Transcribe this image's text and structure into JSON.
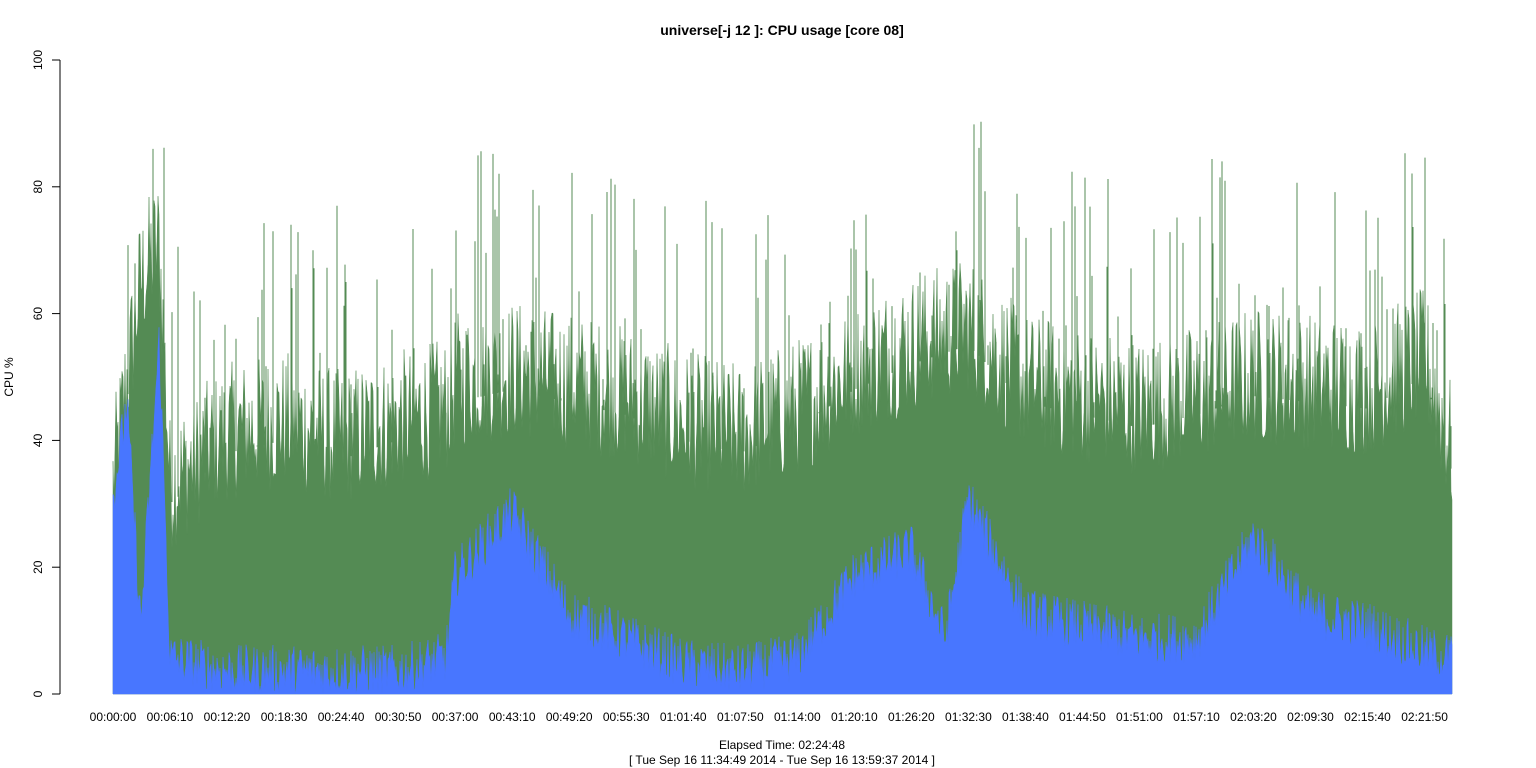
{
  "chart_data": {
    "type": "area",
    "title": "universe[-j 12  ]: CPU usage [core 08]",
    "xlabel": "Elapsed Time: 02:24:48",
    "xlabel_sub": "[ Tue Sep 16 11:34:49 2014 - Tue Sep 16 13:59:37 2014 ]",
    "ylabel": "CPU %",
    "ylim": [
      0,
      100
    ],
    "yticks": [
      0,
      20,
      40,
      60,
      80,
      100
    ],
    "x_range_seconds": [
      0,
      8688
    ],
    "xticks": [
      "00:00:00",
      "00:06:10",
      "00:12:20",
      "00:18:30",
      "00:24:40",
      "00:30:50",
      "00:37:00",
      "00:43:10",
      "00:49:20",
      "00:55:30",
      "01:01:40",
      "01:07:50",
      "01:14:00",
      "01:20:10",
      "01:26:20",
      "01:32:30",
      "01:38:40",
      "01:44:50",
      "01:51:00",
      "01:57:10",
      "02:03:20",
      "02:09:30",
      "02:15:40",
      "02:21:50"
    ],
    "grid": false,
    "colors": {
      "series_total": "#548b54",
      "series_system": "#4876ff"
    },
    "series": [
      {
        "key": "total",
        "x_elapsed": [
          "00:00:00",
          "00:03:00",
          "00:05:00",
          "00:06:10",
          "00:12:20",
          "00:18:30",
          "00:24:40",
          "00:30:50",
          "00:36:00",
          "00:37:00",
          "00:43:10",
          "00:49:20",
          "00:55:30",
          "01:01:40",
          "01:07:50",
          "01:14:00",
          "01:20:10",
          "01:26:20",
          "01:32:30",
          "01:38:40",
          "01:44:50",
          "01:51:00",
          "01:57:10",
          "02:03:20",
          "02:09:30",
          "02:15:40",
          "02:21:50",
          "02:24:48"
        ],
        "values": [
          30,
          62,
          68,
          30,
          38,
          40,
          37,
          40,
          42,
          46,
          48,
          46,
          44,
          40,
          38,
          42,
          48,
          52,
          55,
          46,
          44,
          42,
          44,
          47,
          46,
          45,
          50,
          35
        ]
      },
      {
        "key": "system",
        "x_elapsed": [
          "00:00:00",
          "00:01:30",
          "00:03:00",
          "00:05:00",
          "00:06:10",
          "00:12:20",
          "00:18:30",
          "00:24:40",
          "00:30:50",
          "00:36:00",
          "00:37:00",
          "00:43:10",
          "00:49:20",
          "00:55:30",
          "01:01:40",
          "01:07:50",
          "01:14:00",
          "01:20:10",
          "01:26:20",
          "01:30:00",
          "01:32:30",
          "01:38:40",
          "01:44:50",
          "01:51:00",
          "01:57:10",
          "02:03:20",
          "02:09:30",
          "02:15:40",
          "02:21:50",
          "02:24:48"
        ],
        "values": [
          30,
          45,
          10,
          55,
          5,
          3,
          3,
          3,
          3,
          5,
          18,
          28,
          12,
          8,
          4,
          3,
          5,
          18,
          22,
          8,
          30,
          12,
          10,
          8,
          8,
          24,
          12,
          10,
          6,
          5
        ]
      }
    ]
  }
}
